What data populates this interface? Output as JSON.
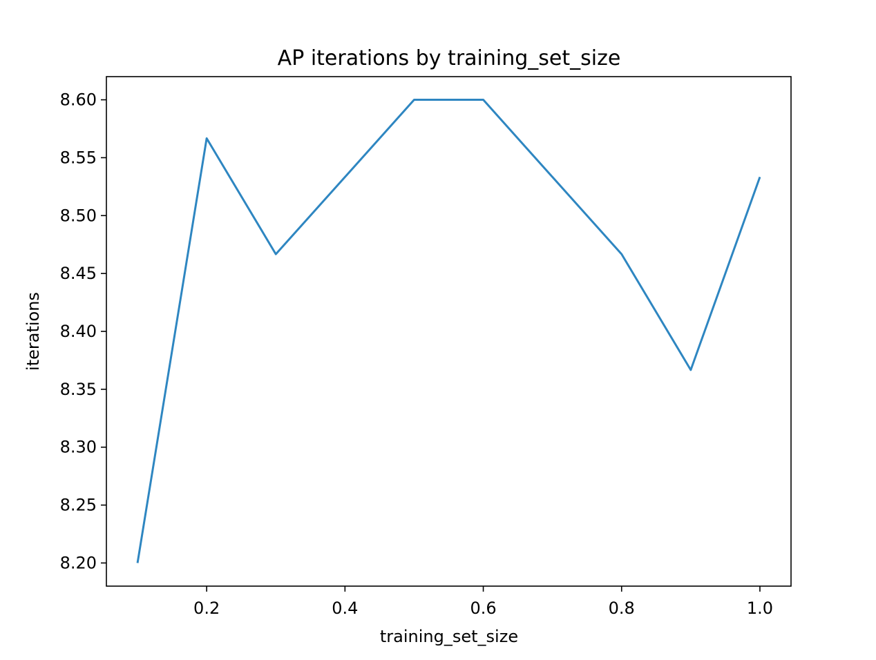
{
  "chart_data": {
    "type": "line",
    "title": "AP iterations by training_set_size",
    "xlabel": "training_set_size",
    "ylabel": "iterations",
    "x": [
      0.1,
      0.2,
      0.3,
      0.4,
      0.5,
      0.6,
      0.7,
      0.8,
      0.9,
      1.0
    ],
    "series": [
      {
        "name": "iterations",
        "color": "#2e86c1",
        "values": [
          8.2,
          8.5667,
          8.4667,
          8.5333,
          8.6,
          8.6,
          8.5333,
          8.4667,
          8.3667,
          8.5333
        ]
      }
    ],
    "xlim": [
      0.055,
      1.045
    ],
    "ylim": [
      8.18,
      8.62
    ],
    "xticks": [
      0.2,
      0.4,
      0.6,
      0.8,
      1.0
    ],
    "xtick_labels": [
      "0.2",
      "0.4",
      "0.6",
      "0.8",
      "1.0"
    ],
    "yticks": [
      8.2,
      8.25,
      8.3,
      8.35,
      8.4,
      8.45,
      8.5,
      8.55,
      8.6
    ],
    "ytick_labels": [
      "8.20",
      "8.25",
      "8.30",
      "8.35",
      "8.40",
      "8.45",
      "8.50",
      "8.55",
      "8.60"
    ],
    "grid": false,
    "legend": "none"
  }
}
